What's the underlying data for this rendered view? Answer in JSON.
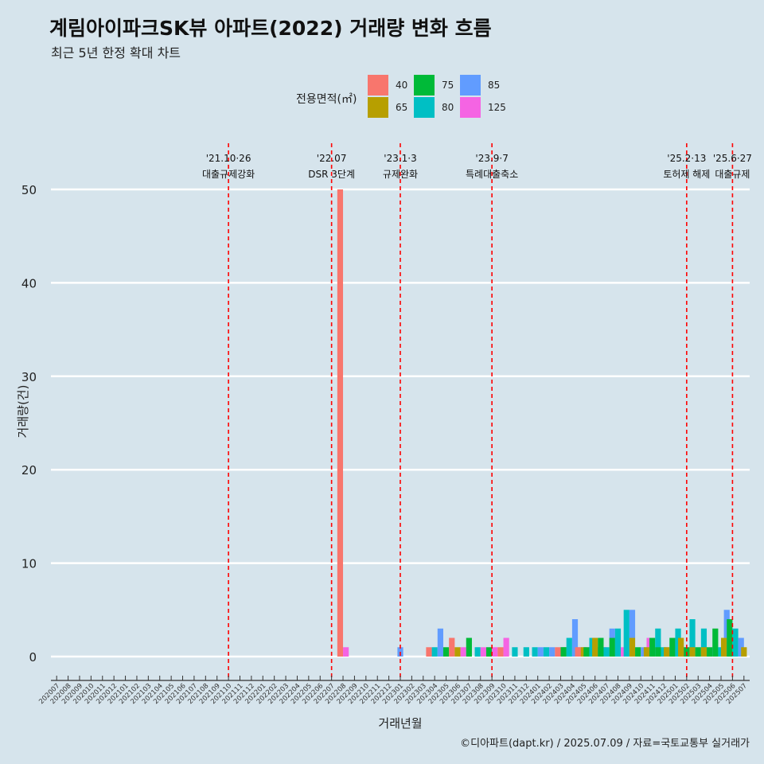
{
  "title": "계림아이파크SK뷰 아파트(2022) 거래량 변화 흐름",
  "subtitle": "최근 5년 한정 확대 차트",
  "source": "©디아파트(dapt.kr) / 2025.07.09 / 자료=국토교통부 실거래가",
  "chart_data": {
    "type": "bar",
    "xlabel": "거래년월",
    "ylabel": "거래량(건)",
    "ylim": [
      0,
      50
    ],
    "yticks": [
      0,
      10,
      20,
      30,
      40,
      50
    ],
    "grid": true,
    "legend": {
      "title": "전용면적(㎡)",
      "position": "top"
    },
    "categories": [
      "202007",
      "202008",
      "202009",
      "202010",
      "202011",
      "202012",
      "202101",
      "202102",
      "202103",
      "202104",
      "202105",
      "202106",
      "202107",
      "202108",
      "202109",
      "202110",
      "202111",
      "202112",
      "202201",
      "202202",
      "202203",
      "202204",
      "202205",
      "202206",
      "202207",
      "202208",
      "202209",
      "202210",
      "202211",
      "202212",
      "202301",
      "202302",
      "202303",
      "202304",
      "202305",
      "202306",
      "202307",
      "202308",
      "202309",
      "202310",
      "202311",
      "202312",
      "202401",
      "202402",
      "202403",
      "202404",
      "202405",
      "202406",
      "202407",
      "202408",
      "202409",
      "202410",
      "202411",
      "202412",
      "202501",
      "202502",
      "202503",
      "202504",
      "202505",
      "202506",
      "202507"
    ],
    "series": [
      {
        "name": "40",
        "color": "#F8766D",
        "values": [
          0,
          0,
          0,
          0,
          0,
          0,
          0,
          0,
          0,
          0,
          0,
          0,
          0,
          0,
          0,
          0,
          0,
          0,
          0,
          0,
          0,
          0,
          0,
          0,
          0,
          50,
          0,
          0,
          0,
          0,
          0,
          0,
          0,
          1,
          0,
          2,
          0,
          0,
          0,
          1,
          0,
          0,
          0,
          0,
          1,
          0,
          1,
          0,
          0,
          0,
          0,
          0,
          0,
          0,
          0,
          0,
          0,
          0,
          0,
          0,
          0
        ]
      },
      {
        "name": "65",
        "color": "#B79F00",
        "values": [
          0,
          0,
          0,
          0,
          0,
          0,
          0,
          0,
          0,
          0,
          0,
          0,
          0,
          0,
          0,
          0,
          0,
          0,
          0,
          0,
          0,
          0,
          0,
          0,
          0,
          0,
          0,
          0,
          0,
          0,
          0,
          0,
          0,
          0,
          0,
          1,
          0,
          0,
          0,
          0,
          0,
          0,
          0,
          0,
          0,
          0,
          1,
          0,
          2,
          0,
          0,
          2,
          1,
          0,
          1,
          2,
          1,
          1,
          0,
          2,
          1
        ]
      },
      {
        "name": "75",
        "color": "#00BA38",
        "values": [
          0,
          0,
          0,
          0,
          0,
          0,
          0,
          0,
          0,
          0,
          0,
          0,
          0,
          0,
          0,
          0,
          0,
          0,
          0,
          0,
          0,
          0,
          0,
          0,
          0,
          0,
          0,
          0,
          0,
          0,
          0,
          0,
          0,
          0,
          1,
          0,
          2,
          0,
          1,
          0,
          0,
          0,
          0,
          0,
          1,
          1,
          0,
          1,
          2,
          2,
          0,
          1,
          2,
          1,
          2,
          1,
          1,
          1,
          3,
          4,
          0
        ]
      },
      {
        "name": "80",
        "color": "#00BFC4",
        "values": [
          0,
          0,
          0,
          0,
          0,
          0,
          0,
          0,
          0,
          0,
          0,
          0,
          0,
          0,
          0,
          0,
          0,
          0,
          0,
          0,
          0,
          0,
          0,
          0,
          0,
          0,
          0,
          0,
          0,
          0,
          0,
          0,
          0,
          1,
          0,
          0,
          0,
          1,
          0,
          0,
          1,
          1,
          1,
          1,
          0,
          2,
          0,
          2,
          1,
          3,
          5,
          0,
          3,
          1,
          3,
          4,
          3,
          0,
          1,
          3,
          0
        ]
      },
      {
        "name": "85",
        "color": "#619CFF",
        "values": [
          0,
          0,
          0,
          0,
          0,
          0,
          0,
          0,
          0,
          0,
          0,
          0,
          0,
          0,
          0,
          0,
          0,
          0,
          0,
          0,
          0,
          0,
          0,
          0,
          0,
          0,
          0,
          0,
          0,
          0,
          1,
          0,
          0,
          3,
          0,
          0,
          0,
          0,
          0,
          0,
          0,
          0,
          1,
          1,
          0,
          4,
          0,
          1,
          3,
          0,
          5,
          1,
          0,
          0,
          0,
          0,
          0,
          1,
          5,
          2,
          0
        ]
      },
      {
        "name": "125",
        "color": "#F564E3",
        "values": [
          0,
          0,
          0,
          0,
          0,
          0,
          0,
          0,
          0,
          0,
          0,
          0,
          0,
          0,
          0,
          0,
          0,
          0,
          0,
          0,
          0,
          0,
          0,
          0,
          0,
          1,
          0,
          0,
          0,
          0,
          0,
          0,
          0,
          0,
          0,
          1,
          0,
          1,
          1,
          2,
          0,
          0,
          0,
          0,
          0,
          1,
          1,
          1,
          1,
          1,
          0,
          2,
          0,
          1,
          1,
          0,
          0,
          0,
          0,
          0,
          0
        ]
      }
    ],
    "annotations": [
      {
        "category": "202110",
        "line1": "'21.10·26",
        "line2": "대출규제강화"
      },
      {
        "category": "202207",
        "line1": "'22.07",
        "line2": "DSR 3단계"
      },
      {
        "category": "202301",
        "line1": "'23.1·3",
        "line2": "규제완화"
      },
      {
        "category": "202309",
        "line1": "'23.9·7",
        "line2": "특례대출축소"
      },
      {
        "category": "202502",
        "line1": "'25.2·13",
        "line2": "토허제 해제"
      },
      {
        "category": "202506",
        "line1": "'25.6·27",
        "line2": "대출규제"
      }
    ]
  }
}
